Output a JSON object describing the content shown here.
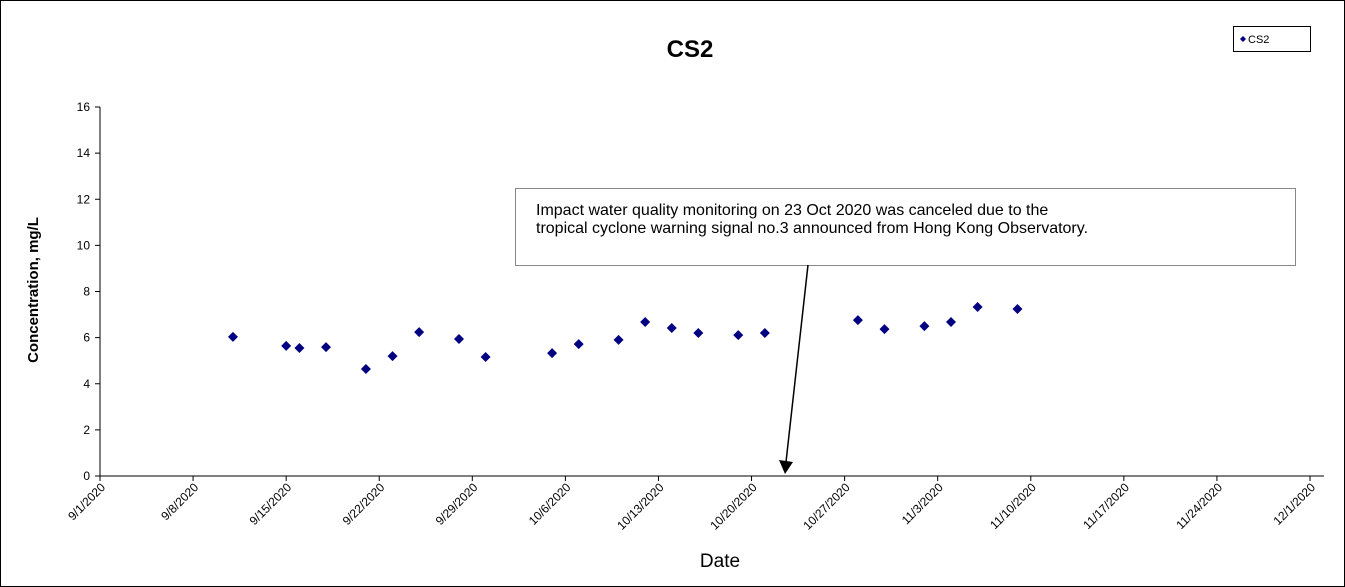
{
  "chart_data": {
    "type": "scatter",
    "title": "CS2",
    "y_label": "Concentration, mg/L",
    "x_label": "Date",
    "annotation": [
      "Impact water quality monitoring on 23 Oct 2020 was canceled due to the",
      "tropical cyclone warning signal no.3 announced from Hong Kong Observatory."
    ],
    "series": [
      {
        "name": "CS2",
        "color": "#000080",
        "x": [
          "9/11/2020",
          "9/15/2020",
          "9/16/2020",
          "9/18/2020",
          "9/21/2020",
          "9/23/2020",
          "9/25/2020",
          "9/28/2020",
          "9/30/2020",
          "10/5/2020",
          "10/7/2020",
          "10/10/2020",
          "10/12/2020",
          "10/14/2020",
          "10/16/2020",
          "10/19/2020",
          "10/21/2020",
          "10/28/2020",
          "10/30/2020",
          "11/2/2020",
          "11/4/2020",
          "11/6/2020",
          "11/9/2020"
        ],
        "values": [
          6.03,
          5.64,
          5.55,
          5.59,
          4.64,
          5.2,
          6.24,
          5.94,
          5.16,
          5.33,
          5.72,
          5.9,
          6.68,
          6.42,
          6.2,
          6.11,
          6.2,
          6.76,
          6.37,
          6.5,
          6.68,
          7.33,
          7.24
        ]
      }
    ],
    "xlim": [
      "9/1/2020",
      "12/1/2020"
    ],
    "xticks": [
      "9/1/2020",
      "9/8/2020",
      "9/15/2020",
      "9/22/2020",
      "9/29/2020",
      "10/6/2020",
      "10/13/2020",
      "10/20/2020",
      "10/27/2020",
      "11/3/2020",
      "11/10/2020",
      "11/17/2020",
      "11/24/2020",
      "12/1/2020"
    ],
    "ylim": [
      0,
      16
    ],
    "yticks": [
      0,
      2,
      4,
      6,
      8,
      10,
      12,
      14,
      16
    ],
    "legend": "top-right",
    "grid": false
  }
}
